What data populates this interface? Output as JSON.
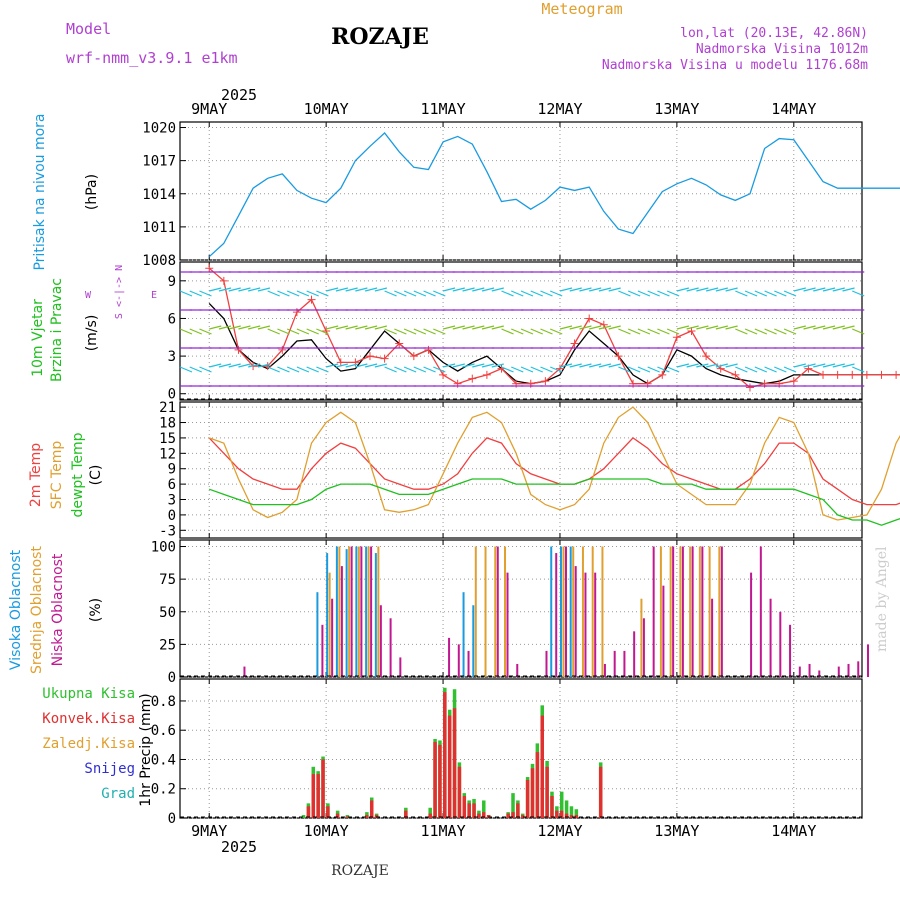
{
  "header": {
    "model_label": "Model",
    "model_name": "wrf-nmm_v3.9.1 e1km",
    "station": "ROZAJE",
    "product": "Meteogram",
    "coords": "lon,lat (20.13E, 42.86N)",
    "elevation": "Nadmorska Visina 1012m",
    "model_elevation": "Nadmorska Visina u modelu 1176.68m",
    "credit": "made by Angel",
    "footer_station": "ROZAJE"
  },
  "colors": {
    "pressure": "#1a9be0",
    "wind_black": "#000000",
    "gust": "#f04040",
    "t2m": "#f04040",
    "tsfc": "#e0a030",
    "dewpoint": "#20c020",
    "cloud_high": "#1a9be0",
    "cloud_mid": "#e0a030",
    "cloud_low": "#c01890",
    "precip_total": "#30c030",
    "precip_conv": "#e03030",
    "purple": "#b040d0"
  },
  "time_axis": {
    "year": "2025",
    "days": [
      "9MAY",
      "10MAY",
      "11MAY",
      "12MAY",
      "13MAY",
      "14MAY"
    ]
  },
  "panels": {
    "pressure": {
      "label": "Pritisak na nivou mora",
      "unit": "(hPa)"
    },
    "wind": {
      "label_line1": "10m Vjetar",
      "label_line2": "Brzina i Pravac",
      "unit": "(m/s)",
      "compass_ns": "S <-|-> N",
      "compass_w": "W",
      "compass_e": "E"
    },
    "temp": {
      "label_t2m": "2m Temp",
      "label_tsfc": "SFC Temp",
      "label_dew": "dewpt Temp",
      "unit": "(C)"
    },
    "cloud": {
      "label_high": "Visoka Oblacnost",
      "label_mid": "Srednja Oblacnost",
      "label_low": "Niska Oblacnost",
      "unit": "(%)"
    },
    "precip": {
      "legend": [
        "Ukupna Kisa",
        "Konvek.Kisa",
        "Zaledj.Kisa",
        "Snijeg",
        "Grad"
      ],
      "unit": "1hr Precip (mm)"
    }
  },
  "chart_data": [
    {
      "type": "line",
      "id": "pressure",
      "ylabel": "(hPa)",
      "ylim": [
        1008,
        1020.5
      ],
      "yticks": [
        "1020",
        "1017",
        "1014",
        "1011",
        "1008"
      ],
      "ytick_values": [
        1020,
        1017,
        1014,
        1011,
        1008
      ],
      "x_hours": [
        0,
        3,
        6,
        9,
        12,
        15,
        18,
        21,
        24,
        27,
        30,
        33,
        36,
        39,
        42,
        45,
        48,
        51,
        54,
        57,
        60,
        63,
        66,
        69,
        72,
        75,
        78,
        81,
        84,
        87,
        90,
        93,
        96,
        99,
        102,
        105,
        108,
        111,
        114,
        117,
        120,
        123,
        126,
        129,
        132,
        135,
        138,
        141,
        144
      ],
      "series": [
        {
          "values": [
            1008.3,
            1009.5,
            1012,
            1014.5,
            1015.4,
            1015.8,
            1014.3,
            1013.6,
            1013.2,
            1014.5,
            1017,
            1018.3,
            1019.5,
            1017.8,
            1016.4,
            1016.2,
            1018.7,
            1019.2,
            1018.5,
            1016,
            1013.3,
            1013.5,
            1012.6,
            1013.4,
            1014.6,
            1014.3,
            1014.6,
            1012.4,
            1010.8,
            1010.4,
            1012.3,
            1014.2,
            1014.9,
            1015.4,
            1014.8,
            1013.9,
            1013.4,
            1014,
            1018.1,
            1019,
            1018.9,
            1017,
            1015.1,
            1014.5,
            1014.5,
            1014.5,
            1014.5,
            1014.5,
            1014.5
          ]
        }
      ]
    },
    {
      "type": "line",
      "id": "wind",
      "ylabel": "(m/s)",
      "ylim": [
        -0.5,
        10.5
      ],
      "yticks": [
        "9",
        "6",
        "3",
        "0"
      ],
      "ytick_values": [
        9,
        6,
        3,
        0
      ],
      "x_hours": [
        0,
        3,
        6,
        9,
        12,
        15,
        18,
        21,
        24,
        27,
        30,
        33,
        36,
        39,
        42,
        45,
        48,
        51,
        54,
        57,
        60,
        63,
        66,
        69,
        72,
        75,
        78,
        81,
        84,
        87,
        90,
        93,
        96,
        99,
        102,
        105,
        108,
        111,
        114,
        117,
        120,
        123,
        126,
        129,
        132,
        135,
        138,
        141,
        144
      ],
      "series": [
        {
          "values": [
            7.2,
            6.0,
            3.5,
            2.5,
            2.0,
            3.0,
            4.2,
            4.3,
            2.8,
            1.8,
            2.0,
            3.5,
            5.0,
            4.0,
            3.0,
            3.5,
            2.5,
            1.8,
            2.5,
            3.0,
            2.0,
            1.0,
            0.8,
            1.0,
            1.5,
            3.5,
            5.0,
            4.0,
            3.0,
            1.5,
            0.8,
            1.5,
            3.5,
            3.0,
            2.0,
            1.5,
            1.2,
            1.0,
            0.8,
            1.0,
            1.5,
            1.5,
            1.5,
            1.5,
            1.5,
            1.5,
            1.5,
            1.5,
            1.5
          ]
        },
        {
          "values": [
            10.0,
            9.0,
            3.5,
            2.2,
            2.2,
            3.5,
            6.5,
            7.5,
            5.0,
            2.5,
            2.5,
            3.0,
            2.8,
            4.0,
            3.0,
            3.5,
            1.5,
            0.8,
            1.2,
            1.5,
            2.0,
            0.8,
            0.8,
            1.0,
            2.0,
            4.0,
            6.0,
            5.5,
            3.0,
            0.8,
            0.8,
            1.5,
            4.5,
            5.0,
            3.0,
            2.0,
            1.5,
            0.5,
            0.8,
            0.8,
            1.0,
            2.0,
            1.5,
            1.5,
            1.5,
            1.5,
            1.5,
            1.5,
            1.5
          ]
        }
      ]
    },
    {
      "type": "line",
      "id": "temperature",
      "ylabel": "(C)",
      "ylim": [
        -4.5,
        22
      ],
      "yticks": [
        "21",
        "18",
        "15",
        "12",
        "9",
        "6",
        "3",
        "0",
        "-3"
      ],
      "ytick_values": [
        21,
        18,
        15,
        12,
        9,
        6,
        3,
        0,
        -3
      ],
      "x_hours": [
        0,
        3,
        6,
        9,
        12,
        15,
        18,
        21,
        24,
        27,
        30,
        33,
        36,
        39,
        42,
        45,
        48,
        51,
        54,
        57,
        60,
        63,
        66,
        69,
        72,
        75,
        78,
        81,
        84,
        87,
        90,
        93,
        96,
        99,
        102,
        105,
        108,
        111,
        114,
        117,
        120,
        123,
        126,
        129,
        132,
        135,
        138,
        141,
        144
      ],
      "series": [
        {
          "values": [
            15,
            12,
            9,
            7,
            6,
            5,
            5,
            9,
            12,
            14,
            13,
            10,
            7,
            6,
            5,
            5,
            6,
            8,
            12,
            15,
            14,
            10,
            8,
            7,
            6,
            6,
            7,
            9,
            12,
            15,
            13,
            10,
            8,
            7,
            6,
            5,
            5,
            7,
            10,
            14,
            14,
            12,
            7,
            5,
            3,
            2,
            2,
            2,
            3
          ]
        },
        {
          "values": [
            15,
            14,
            7,
            1,
            -0.5,
            0.5,
            3,
            14,
            18,
            20,
            18,
            10,
            1,
            0.5,
            1,
            2,
            8,
            14,
            19,
            20,
            18,
            12,
            4,
            2,
            1,
            2,
            5,
            14,
            19,
            21,
            18,
            12,
            6,
            4,
            2,
            2,
            2,
            6,
            14,
            19,
            18,
            12,
            0,
            -1,
            -0.5,
            0,
            5,
            14,
            19
          ]
        },
        {
          "values": [
            5,
            4,
            3,
            2,
            2,
            2,
            2,
            3,
            5,
            6,
            6,
            6,
            5,
            4,
            4,
            4,
            5,
            6,
            7,
            7,
            7,
            6,
            6,
            6,
            6,
            6,
            7,
            7,
            7,
            7,
            7,
            6,
            6,
            6,
            5,
            5,
            5,
            5,
            5,
            5,
            5,
            4,
            3,
            0,
            -1,
            -1,
            -2,
            -1,
            0
          ]
        }
      ]
    },
    {
      "type": "bar",
      "id": "cloud",
      "ylabel": "(%)",
      "ylim": [
        0,
        105
      ],
      "yticks": [
        "100",
        "75",
        "50",
        "25",
        "0"
      ],
      "ytick_values": [
        100,
        75,
        50,
        25,
        0
      ],
      "x_hours": [
        6,
        18,
        22,
        24,
        26,
        28,
        30,
        32,
        34,
        36,
        38,
        48,
        50,
        52,
        54,
        56,
        58,
        60,
        62,
        68,
        70,
        72,
        74,
        76,
        78,
        80,
        82,
        84,
        86,
        88,
        90,
        92,
        94,
        96,
        98,
        100,
        102,
        104,
        110,
        112,
        114,
        116,
        118,
        120,
        122,
        124,
        128,
        130,
        132,
        134
      ],
      "series": [
        {
          "name": "Visoka Oblacnost",
          "values": [
            0,
            0,
            65,
            95,
            100,
            98,
            100,
            100,
            95,
            0,
            0,
            0,
            0,
            65,
            55,
            0,
            0,
            0,
            0,
            0,
            100,
            100,
            100,
            0,
            0,
            0,
            0,
            0,
            0,
            0,
            0,
            0,
            0,
            0,
            0,
            0,
            0,
            0,
            0,
            0,
            0,
            0,
            0,
            0,
            0,
            0,
            0,
            0,
            0,
            0
          ]
        },
        {
          "name": "Srednja Oblacnost",
          "values": [
            0,
            0,
            0,
            80,
            100,
            100,
            100,
            100,
            100,
            0,
            0,
            0,
            0,
            0,
            100,
            100,
            100,
            100,
            0,
            0,
            0,
            100,
            100,
            100,
            100,
            100,
            0,
            0,
            0,
            60,
            0,
            100,
            100,
            100,
            100,
            100,
            100,
            100,
            0,
            0,
            0,
            0,
            0,
            0,
            0,
            0,
            0,
            0,
            0,
            0
          ]
        },
        {
          "name": "Niska Oblacnost",
          "values": [
            8,
            0,
            40,
            60,
            85,
            100,
            100,
            100,
            55,
            45,
            15,
            30,
            25,
            20,
            0,
            0,
            100,
            80,
            10,
            20,
            95,
            100,
            85,
            80,
            80,
            10,
            20,
            20,
            35,
            45,
            100,
            70,
            100,
            100,
            100,
            100,
            60,
            100,
            80,
            100,
            60,
            50,
            40,
            8,
            10,
            5,
            8,
            10,
            12,
            25
          ]
        }
      ]
    },
    {
      "type": "bar",
      "id": "precip",
      "ylabel": "1hr Precip (mm)",
      "ylim": [
        0,
        0.95
      ],
      "yticks": [
        "0.8",
        "0.6",
        "0.4",
        "0.2",
        "0"
      ],
      "ytick_values": [
        0.8,
        0.6,
        0.4,
        0.2,
        0
      ],
      "x_hours": [
        19,
        20,
        21,
        22,
        23,
        24,
        26,
        28,
        32,
        33,
        34,
        40,
        45,
        46,
        47,
        48,
        49,
        50,
        51,
        52,
        53,
        54,
        55,
        56,
        57,
        61,
        62,
        63,
        64,
        65,
        66,
        67,
        68,
        69,
        70,
        71,
        72,
        73,
        74,
        75,
        80
      ],
      "series": [
        {
          "name": "Ukupna Kisa",
          "values": [
            0.02,
            0.1,
            0.35,
            0.32,
            0.42,
            0.1,
            0.05,
            0.02,
            0.04,
            0.14,
            0.03,
            0.07,
            0.07,
            0.54,
            0.53,
            0.89,
            0.74,
            0.88,
            0.38,
            0.17,
            0.12,
            0.13,
            0.05,
            0.12,
            0.02,
            0.04,
            0.17,
            0.12,
            0.03,
            0.28,
            0.37,
            0.51,
            0.77,
            0.39,
            0.18,
            0.08,
            0.18,
            0.12,
            0.08,
            0.06,
            0.38
          ]
        },
        {
          "name": "Konvek.Kisa",
          "values": [
            0.0,
            0.08,
            0.3,
            0.3,
            0.4,
            0.08,
            0.03,
            0.01,
            0.02,
            0.12,
            0.02,
            0.05,
            0.03,
            0.52,
            0.5,
            0.86,
            0.7,
            0.75,
            0.35,
            0.15,
            0.1,
            0.1,
            0.03,
            0.04,
            0.02,
            0.03,
            0.04,
            0.1,
            0.02,
            0.26,
            0.34,
            0.45,
            0.7,
            0.35,
            0.15,
            0.05,
            0.05,
            0.03,
            0.02,
            0.02,
            0.35
          ]
        }
      ]
    }
  ]
}
